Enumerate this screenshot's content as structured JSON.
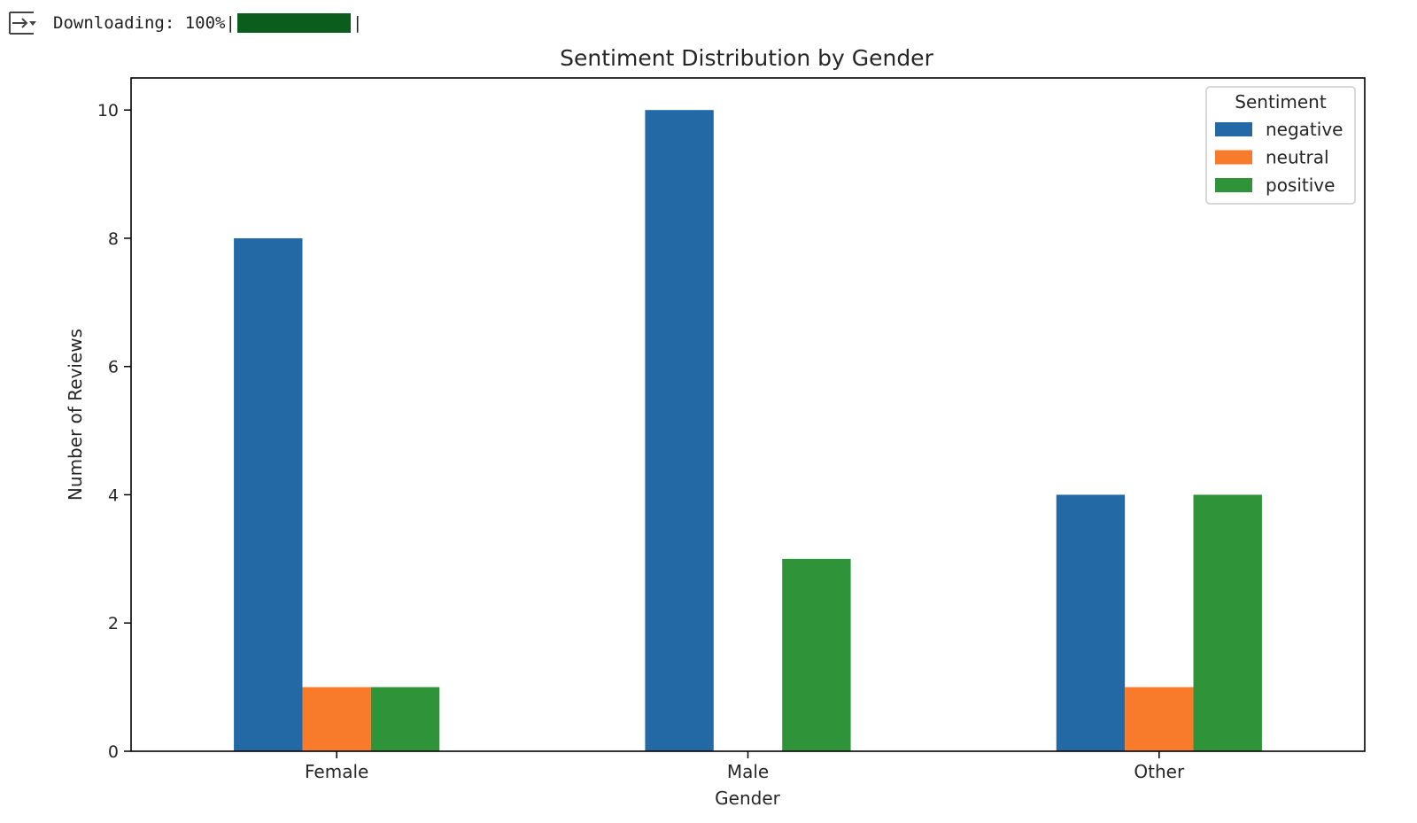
{
  "output": {
    "download_label": "Downloading:",
    "download_percent": "100%",
    "progress_fraction": 1.0,
    "progress_color": "#0b5d1e",
    "icon": "output-collapse-icon"
  },
  "chart_data": {
    "type": "bar",
    "title": "Sentiment Distribution by Gender",
    "xlabel": "Gender",
    "ylabel": "Number of Reviews",
    "categories": [
      "Female",
      "Male",
      "Other"
    ],
    "series": [
      {
        "name": "negative",
        "values": [
          8,
          10,
          4
        ],
        "color": "#2369a6"
      },
      {
        "name": "neutral",
        "values": [
          1,
          0,
          1
        ],
        "color": "#f77b2b"
      },
      {
        "name": "positive",
        "values": [
          1,
          3,
          4
        ],
        "color": "#2e9339"
      }
    ],
    "ylim": [
      0,
      10.5
    ],
    "yticks": [
      0,
      2,
      4,
      6,
      8,
      10
    ],
    "legend": {
      "title": "Sentiment",
      "position": "top-right"
    },
    "grid": false
  }
}
